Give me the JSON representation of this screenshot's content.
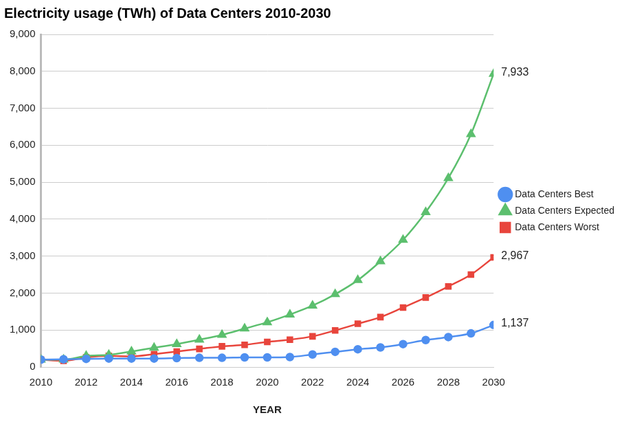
{
  "chart_data": {
    "type": "line",
    "title": "Electricity usage (TWh) of Data Centers 2010-2030",
    "x_label": "YEAR",
    "x": [
      2010,
      2011,
      2012,
      2013,
      2014,
      2015,
      2016,
      2017,
      2018,
      2019,
      2020,
      2021,
      2022,
      2023,
      2024,
      2025,
      2026,
      2027,
      2028,
      2029,
      2030
    ],
    "xlim": [
      2010,
      2030
    ],
    "xticks": [
      2010,
      2012,
      2014,
      2016,
      2018,
      2020,
      2022,
      2024,
      2026,
      2028,
      2030
    ],
    "ylim": [
      0,
      9000
    ],
    "yticks": [
      0,
      {
        "value": 1000,
        "label": "1,000"
      },
      {
        "value": 2000,
        "label": "2,000"
      },
      {
        "value": 3000,
        "label": "3,000"
      },
      {
        "value": 4000,
        "label": "4,000"
      },
      {
        "value": 5000,
        "label": "5,000"
      },
      {
        "value": 6000,
        "label": "6,000"
      },
      {
        "value": 7000,
        "label": "7,000"
      },
      {
        "value": 8000,
        "label": "8,000"
      },
      {
        "value": 9000,
        "label": "9,000"
      }
    ],
    "grid": "y",
    "legend": "right",
    "series": [
      {
        "name": "Data Centers Best",
        "color": "#4f8ff0",
        "marker": "circle",
        "line_style": "solid",
        "values": [
          200,
          210,
          220,
          230,
          230,
          230,
          240,
          250,
          250,
          260,
          260,
          270,
          340,
          410,
          480,
          530,
          620,
          730,
          810,
          910,
          1137
        ],
        "value_labels": [
          null,
          null,
          null,
          null,
          null,
          null,
          null,
          null,
          null,
          null,
          null,
          null,
          null,
          null,
          null,
          null,
          null,
          null,
          null,
          null,
          "1,137"
        ]
      },
      {
        "name": "Data Centers Expected",
        "color": "#5cbf6e",
        "marker": "triangle",
        "line_style": "solid",
        "values": [
          200,
          200,
          300,
          330,
          420,
          520,
          620,
          740,
          870,
          1040,
          1210,
          1420,
          1660,
          1970,
          2350,
          2860,
          3440,
          4190,
          5110,
          6300,
          7933
        ],
        "value_labels": [
          null,
          null,
          null,
          null,
          null,
          null,
          null,
          null,
          null,
          null,
          null,
          null,
          null,
          null,
          null,
          null,
          null,
          null,
          null,
          null,
          "7,933"
        ]
      },
      {
        "name": "Data Centers Worst",
        "color": "#e8453c",
        "marker": "rect",
        "line_style": "solid",
        "values": [
          200,
          170,
          260,
          300,
          290,
          350,
          420,
          490,
          560,
          600,
          680,
          740,
          830,
          990,
          1170,
          1350,
          1610,
          1880,
          2180,
          2500,
          2967
        ],
        "value_labels": [
          null,
          null,
          null,
          null,
          null,
          null,
          null,
          null,
          null,
          null,
          null,
          null,
          null,
          null,
          null,
          null,
          null,
          null,
          null,
          null,
          "2,967"
        ]
      }
    ]
  }
}
